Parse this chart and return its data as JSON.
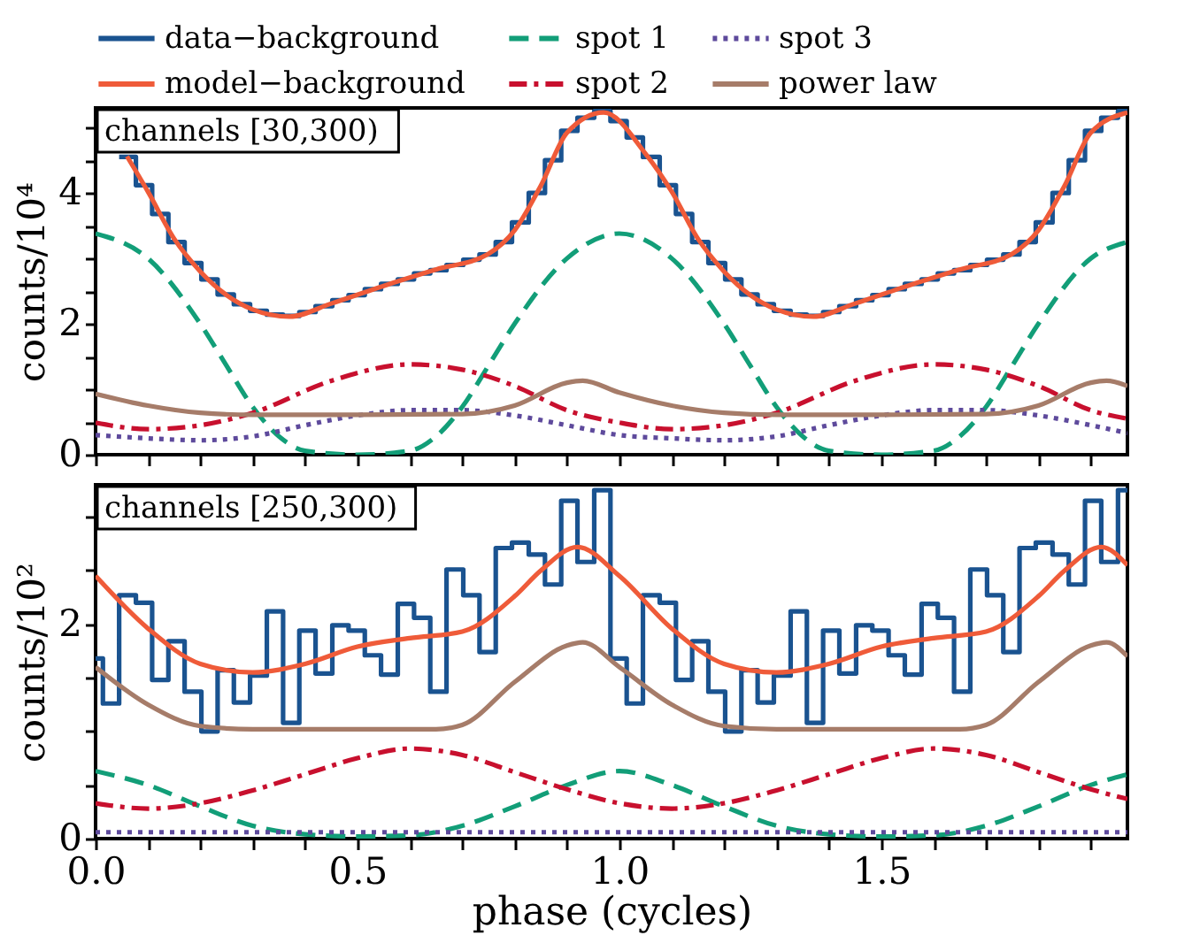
{
  "chart_data": [
    {
      "type": "line",
      "ylabel": "counts/10⁴",
      "annotations": [
        "channels [30,300)"
      ],
      "legend": "top",
      "tick_labels": "y",
      "xlim": [
        0,
        1.97
      ],
      "xticks": [
        {
          "value": 0,
          "label": null
        },
        {
          "value": 0.1,
          "label": null
        },
        {
          "value": 0.2,
          "label": null
        },
        {
          "value": 0.3,
          "label": null
        },
        {
          "value": 0.4,
          "label": null
        },
        {
          "value": 0.5,
          "label": null
        },
        {
          "value": 0.6,
          "label": null
        },
        {
          "value": 0.7,
          "label": null
        },
        {
          "value": 0.8,
          "label": null
        },
        {
          "value": 0.9,
          "label": null
        },
        {
          "value": 1,
          "label": null
        },
        {
          "value": 1.1,
          "label": null
        },
        {
          "value": 1.2,
          "label": null
        },
        {
          "value": 1.3,
          "label": null
        },
        {
          "value": 1.4,
          "label": null
        },
        {
          "value": 1.5,
          "label": null
        },
        {
          "value": 1.6,
          "label": null
        },
        {
          "value": 1.7,
          "label": null
        },
        {
          "value": 1.8,
          "label": null
        },
        {
          "value": 1.9,
          "label": null
        }
      ],
      "ylim": [
        0,
        5.3
      ],
      "yticks": [
        0,
        {
          "value": 0.5,
          "label": null
        },
        {
          "value": 1,
          "label": null
        },
        {
          "value": 1.5,
          "label": null
        },
        2,
        {
          "value": 2.5,
          "label": null
        },
        {
          "value": 3,
          "label": null
        },
        {
          "value": 3.5,
          "label": null
        },
        4,
        {
          "value": 4.5,
          "label": null
        },
        {
          "value": 5,
          "label": null
        }
      ],
      "series": [
        {
          "name": "data−background",
          "type": "step",
          "color": "#1a5390",
          "line_style": "solid",
          "x": [
            0.045,
            0.077,
            0.108,
            0.139,
            0.17,
            0.202,
            0.233,
            0.264,
            0.295,
            0.327,
            0.358,
            0.389,
            0.42,
            0.452,
            0.483,
            0.514,
            0.545,
            0.577,
            0.608,
            0.639,
            0.67,
            0.702,
            0.733,
            0.764,
            0.795,
            0.827,
            0.858,
            0.889,
            0.92,
            0.952,
            0.983,
            1.014,
            1.045,
            1.077,
            1.108,
            1.139,
            1.17,
            1.202,
            1.233,
            1.264,
            1.295,
            1.327,
            1.358,
            1.389,
            1.42,
            1.452,
            1.483,
            1.514,
            1.545,
            1.577,
            1.608,
            1.639,
            1.67,
            1.702,
            1.733,
            1.764,
            1.795,
            1.827,
            1.858,
            1.889,
            1.92,
            1.952,
            1.97
          ],
          "values": [
            4.55,
            4.12,
            3.68,
            3.25,
            2.93,
            2.68,
            2.45,
            2.3,
            2.2,
            2.14,
            2.12,
            2.18,
            2.27,
            2.36,
            2.44,
            2.53,
            2.61,
            2.68,
            2.77,
            2.82,
            2.9,
            2.98,
            3.06,
            3.25,
            3.55,
            4.0,
            4.5,
            4.95,
            5.15,
            5.25,
            5.1,
            4.85,
            4.55,
            4.12,
            3.68,
            3.25,
            2.93,
            2.68,
            2.45,
            2.3,
            2.2,
            2.14,
            2.12,
            2.18,
            2.27,
            2.36,
            2.44,
            2.53,
            2.61,
            2.68,
            2.77,
            2.82,
            2.9,
            2.98,
            3.06,
            3.25,
            3.55,
            4.0,
            4.5,
            4.95,
            5.15,
            5.25,
            5.25
          ]
        },
        {
          "name": "model−background",
          "type": "line",
          "color": "#ef5b39",
          "line_style": "solid",
          "x": [
            0.06,
            0.1,
            0.15,
            0.2,
            0.25,
            0.3,
            0.37,
            0.45,
            0.55,
            0.65,
            0.75,
            0.8,
            0.85,
            0.9,
            0.97,
            1.05,
            1.1,
            1.15,
            1.2,
            1.25,
            1.3,
            1.37,
            1.45,
            1.55,
            1.65,
            1.75,
            1.8,
            1.85,
            1.9,
            1.97
          ],
          "values": [
            4.56,
            4.02,
            3.3,
            2.8,
            2.44,
            2.22,
            2.11,
            2.31,
            2.58,
            2.83,
            3.07,
            3.43,
            4.11,
            4.92,
            5.23,
            4.6,
            4.02,
            3.3,
            2.8,
            2.44,
            2.22,
            2.11,
            2.31,
            2.58,
            2.83,
            3.07,
            3.43,
            4.11,
            4.92,
            5.23
          ]
        },
        {
          "name": "spot 1",
          "type": "line",
          "color": "#129e78",
          "line_style": "dashed",
          "x": [
            0,
            0.1,
            0.2,
            0.25,
            0.3,
            0.35,
            0.4,
            0.5,
            0.6,
            0.65,
            0.7,
            0.75,
            0.8,
            0.9,
            1.0,
            1.1,
            1.2,
            1.25,
            1.3,
            1.35,
            1.4,
            1.5,
            1.6,
            1.65,
            1.7,
            1.75,
            1.8,
            1.9,
            1.97
          ],
          "values": [
            3.38,
            3.0,
            2.0,
            1.36,
            0.73,
            0.28,
            0.06,
            0.0,
            0.06,
            0.28,
            0.73,
            1.36,
            2.0,
            3.0,
            3.38,
            3.0,
            2.0,
            1.36,
            0.73,
            0.28,
            0.06,
            0.0,
            0.06,
            0.28,
            0.73,
            1.36,
            2.0,
            3.0,
            3.25
          ]
        },
        {
          "name": "spot 2",
          "type": "line",
          "color": "#c8102e",
          "line_style": "dashdot",
          "x": [
            0,
            0.1,
            0.2,
            0.3,
            0.45,
            0.6,
            0.7,
            0.8,
            0.9,
            1.0,
            1.1,
            1.2,
            1.3,
            1.45,
            1.6,
            1.7,
            1.8,
            1.9,
            1.97
          ],
          "values": [
            0.49,
            0.39,
            0.45,
            0.64,
            1.13,
            1.38,
            1.3,
            1.05,
            0.68,
            0.49,
            0.39,
            0.45,
            0.64,
            1.13,
            1.38,
            1.3,
            1.05,
            0.68,
            0.55
          ]
        },
        {
          "name": "spot 3",
          "type": "line",
          "color": "#5e4a9c",
          "line_style": "dotted",
          "x": [
            0,
            0.1,
            0.2,
            0.3,
            0.4,
            0.5,
            0.6,
            0.7,
            0.8,
            0.9,
            1.0,
            1.1,
            1.2,
            1.3,
            1.4,
            1.5,
            1.6,
            1.7,
            1.8,
            1.9,
            1.97
          ],
          "values": [
            0.3,
            0.25,
            0.22,
            0.28,
            0.45,
            0.6,
            0.68,
            0.68,
            0.6,
            0.45,
            0.3,
            0.25,
            0.22,
            0.28,
            0.45,
            0.6,
            0.68,
            0.68,
            0.6,
            0.45,
            0.33
          ]
        },
        {
          "name": "power law",
          "type": "line",
          "color": "#a67c69",
          "line_style": "solid",
          "x": [
            0,
            0.1,
            0.2,
            0.3,
            0.5,
            0.7,
            0.8,
            0.9,
            0.93,
            1.0,
            1.1,
            1.2,
            1.3,
            1.5,
            1.7,
            1.8,
            1.9,
            1.93,
            1.97
          ],
          "values": [
            0.93,
            0.75,
            0.64,
            0.61,
            0.61,
            0.62,
            0.75,
            1.1,
            1.13,
            0.95,
            0.75,
            0.64,
            0.61,
            0.61,
            0.62,
            0.75,
            1.1,
            1.13,
            1.05
          ]
        }
      ]
    },
    {
      "type": "line",
      "ylabel": "counts/10²",
      "xlabel": "phase (cycles)",
      "annotations": [
        "channels [250,300)"
      ],
      "legend": "top",
      "xlim": [
        0,
        1.97
      ],
      "xticks": [
        {
          "value": 0,
          "label": "0.0"
        },
        {
          "value": 0.1,
          "label": null
        },
        {
          "value": 0.2,
          "label": null
        },
        {
          "value": 0.3,
          "label": null
        },
        {
          "value": 0.4,
          "label": null
        },
        {
          "value": 0.5,
          "label": "0.5"
        },
        {
          "value": 0.6,
          "label": null
        },
        {
          "value": 0.7,
          "label": null
        },
        {
          "value": 0.8,
          "label": null
        },
        {
          "value": 0.9,
          "label": null
        },
        {
          "value": 1,
          "label": "1.0"
        },
        {
          "value": 1.1,
          "label": null
        },
        {
          "value": 1.2,
          "label": null
        },
        {
          "value": 1.3,
          "label": null
        },
        {
          "value": 1.4,
          "label": null
        },
        {
          "value": 1.5,
          "label": "1.5"
        },
        {
          "value": 1.6,
          "label": null
        },
        {
          "value": 1.7,
          "label": null
        },
        {
          "value": 1.8,
          "label": null
        },
        {
          "value": 1.9,
          "label": null
        }
      ],
      "ylim": [
        0,
        3.3
      ],
      "yticks": [
        0,
        {
          "value": 0.5,
          "label": null
        },
        {
          "value": 1,
          "label": null
        },
        {
          "value": 1.5,
          "label": null
        },
        2,
        {
          "value": 2.5,
          "label": null
        },
        {
          "value": 3,
          "label": null
        }
      ],
      "series": [
        {
          "name": "data−background",
          "type": "step",
          "color": "#1a5390",
          "line_style": "solid",
          "x": [
            0,
            0.014,
            0.045,
            0.077,
            0.108,
            0.139,
            0.17,
            0.202,
            0.233,
            0.264,
            0.295,
            0.327,
            0.358,
            0.389,
            0.42,
            0.452,
            0.483,
            0.514,
            0.545,
            0.577,
            0.608,
            0.639,
            0.67,
            0.702,
            0.733,
            0.764,
            0.795,
            0.827,
            0.858,
            0.889,
            0.92,
            0.952,
            0.983,
            1.014,
            1.045,
            1.077,
            1.108,
            1.139,
            1.17,
            1.202,
            1.233,
            1.264,
            1.295,
            1.327,
            1.358,
            1.389,
            1.42,
            1.452,
            1.483,
            1.514,
            1.545,
            1.577,
            1.608,
            1.639,
            1.67,
            1.702,
            1.733,
            1.764,
            1.795,
            1.827,
            1.858,
            1.889,
            1.92,
            1.952,
            1.97
          ],
          "values": [
            1.68,
            1.26,
            2.27,
            2.2,
            1.48,
            1.84,
            1.37,
            1.0,
            1.57,
            1.27,
            1.52,
            2.12,
            1.08,
            1.94,
            1.54,
            1.99,
            1.94,
            1.71,
            1.53,
            2.19,
            2.06,
            1.37,
            2.51,
            2.27,
            1.74,
            2.71,
            2.76,
            2.65,
            2.37,
            3.15,
            2.58,
            3.25,
            1.68,
            1.26,
            2.27,
            2.2,
            1.48,
            1.84,
            1.37,
            1.0,
            1.57,
            1.27,
            1.52,
            2.12,
            1.08,
            1.94,
            1.54,
            1.99,
            1.94,
            1.71,
            1.53,
            2.19,
            2.06,
            1.37,
            2.51,
            2.27,
            1.74,
            2.71,
            2.76,
            2.65,
            2.37,
            3.15,
            2.58,
            3.25,
            3.25
          ]
        },
        {
          "name": "model−background",
          "type": "line",
          "color": "#ef5b39",
          "line_style": "solid",
          "x": [
            0,
            0.1,
            0.2,
            0.3,
            0.4,
            0.5,
            0.6,
            0.7,
            0.8,
            0.85,
            0.92,
            1.0,
            1.1,
            1.2,
            1.3,
            1.4,
            1.5,
            1.6,
            1.7,
            1.8,
            1.85,
            1.92,
            1.97
          ],
          "values": [
            2.45,
            1.96,
            1.63,
            1.55,
            1.63,
            1.79,
            1.87,
            1.93,
            2.26,
            2.5,
            2.72,
            2.45,
            1.96,
            1.63,
            1.55,
            1.63,
            1.79,
            1.87,
            1.93,
            2.26,
            2.5,
            2.72,
            2.55
          ]
        },
        {
          "name": "spot 1",
          "type": "line",
          "color": "#129e78",
          "line_style": "dashed",
          "x": [
            0,
            0.1,
            0.2,
            0.3,
            0.4,
            0.5,
            0.6,
            0.7,
            0.8,
            0.9,
            1.0,
            1.1,
            1.2,
            1.3,
            1.4,
            1.5,
            1.6,
            1.7,
            1.8,
            1.9,
            1.97
          ],
          "values": [
            0.63,
            0.5,
            0.3,
            0.12,
            0.04,
            0.02,
            0.03,
            0.12,
            0.3,
            0.5,
            0.63,
            0.5,
            0.3,
            0.12,
            0.04,
            0.02,
            0.03,
            0.12,
            0.3,
            0.5,
            0.6
          ]
        },
        {
          "name": "spot 2",
          "type": "line",
          "color": "#c8102e",
          "line_style": "dashdot",
          "x": [
            0,
            0.1,
            0.2,
            0.3,
            0.4,
            0.5,
            0.6,
            0.7,
            0.8,
            0.9,
            1.0,
            1.1,
            1.2,
            1.3,
            1.4,
            1.5,
            1.6,
            1.7,
            1.8,
            1.9,
            1.97
          ],
          "values": [
            0.33,
            0.28,
            0.33,
            0.45,
            0.6,
            0.75,
            0.84,
            0.78,
            0.62,
            0.46,
            0.33,
            0.28,
            0.33,
            0.45,
            0.6,
            0.75,
            0.84,
            0.78,
            0.62,
            0.46,
            0.37
          ]
        },
        {
          "name": "spot 3",
          "type": "line",
          "color": "#5e4a9c",
          "line_style": "dotted",
          "x": [
            0,
            1.0,
            1.97
          ],
          "values": [
            0.06,
            0.06,
            0.06
          ]
        },
        {
          "name": "power law",
          "type": "line",
          "color": "#a67c69",
          "line_style": "solid",
          "x": [
            0,
            0.1,
            0.2,
            0.3,
            0.65,
            0.7,
            0.8,
            0.9,
            0.93,
            1.0,
            1.1,
            1.2,
            1.3,
            1.65,
            1.7,
            1.8,
            1.9,
            1.93,
            1.97
          ],
          "values": [
            1.6,
            1.25,
            1.05,
            1.02,
            1.02,
            1.06,
            1.46,
            1.8,
            1.83,
            1.6,
            1.25,
            1.05,
            1.02,
            1.02,
            1.06,
            1.46,
            1.8,
            1.83,
            1.7
          ]
        }
      ]
    }
  ]
}
